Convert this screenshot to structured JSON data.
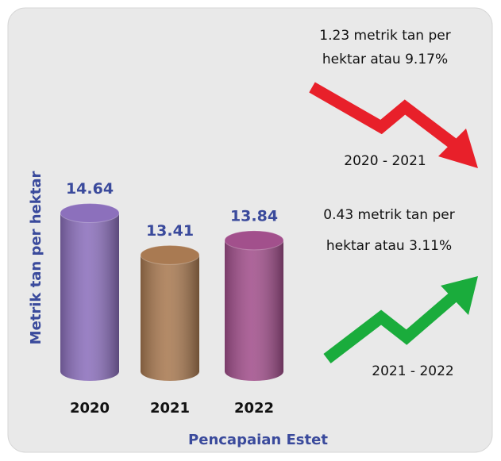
{
  "chart_data": {
    "type": "cylinder_bar",
    "categories": [
      "2020",
      "2021",
      "2022"
    ],
    "values": [
      14.64,
      13.41,
      13.84
    ],
    "colors": [
      "#8c70bc",
      "#a97a52",
      "#a2508c"
    ],
    "ylim": [
      10,
      15
    ],
    "ylabel": "Metrik tan per hektar",
    "xlabel": "Pencapaian Estet",
    "annotations": [
      {
        "lines": [
          "1.23 metrik tan per",
          "hektar atau 9.17%"
        ],
        "period": "2020 - 2021"
      },
      {
        "lines": [
          "0.43 metrik tan per",
          "hektar atau 3.11%"
        ],
        "period": "2021 - 2022"
      }
    ]
  }
}
